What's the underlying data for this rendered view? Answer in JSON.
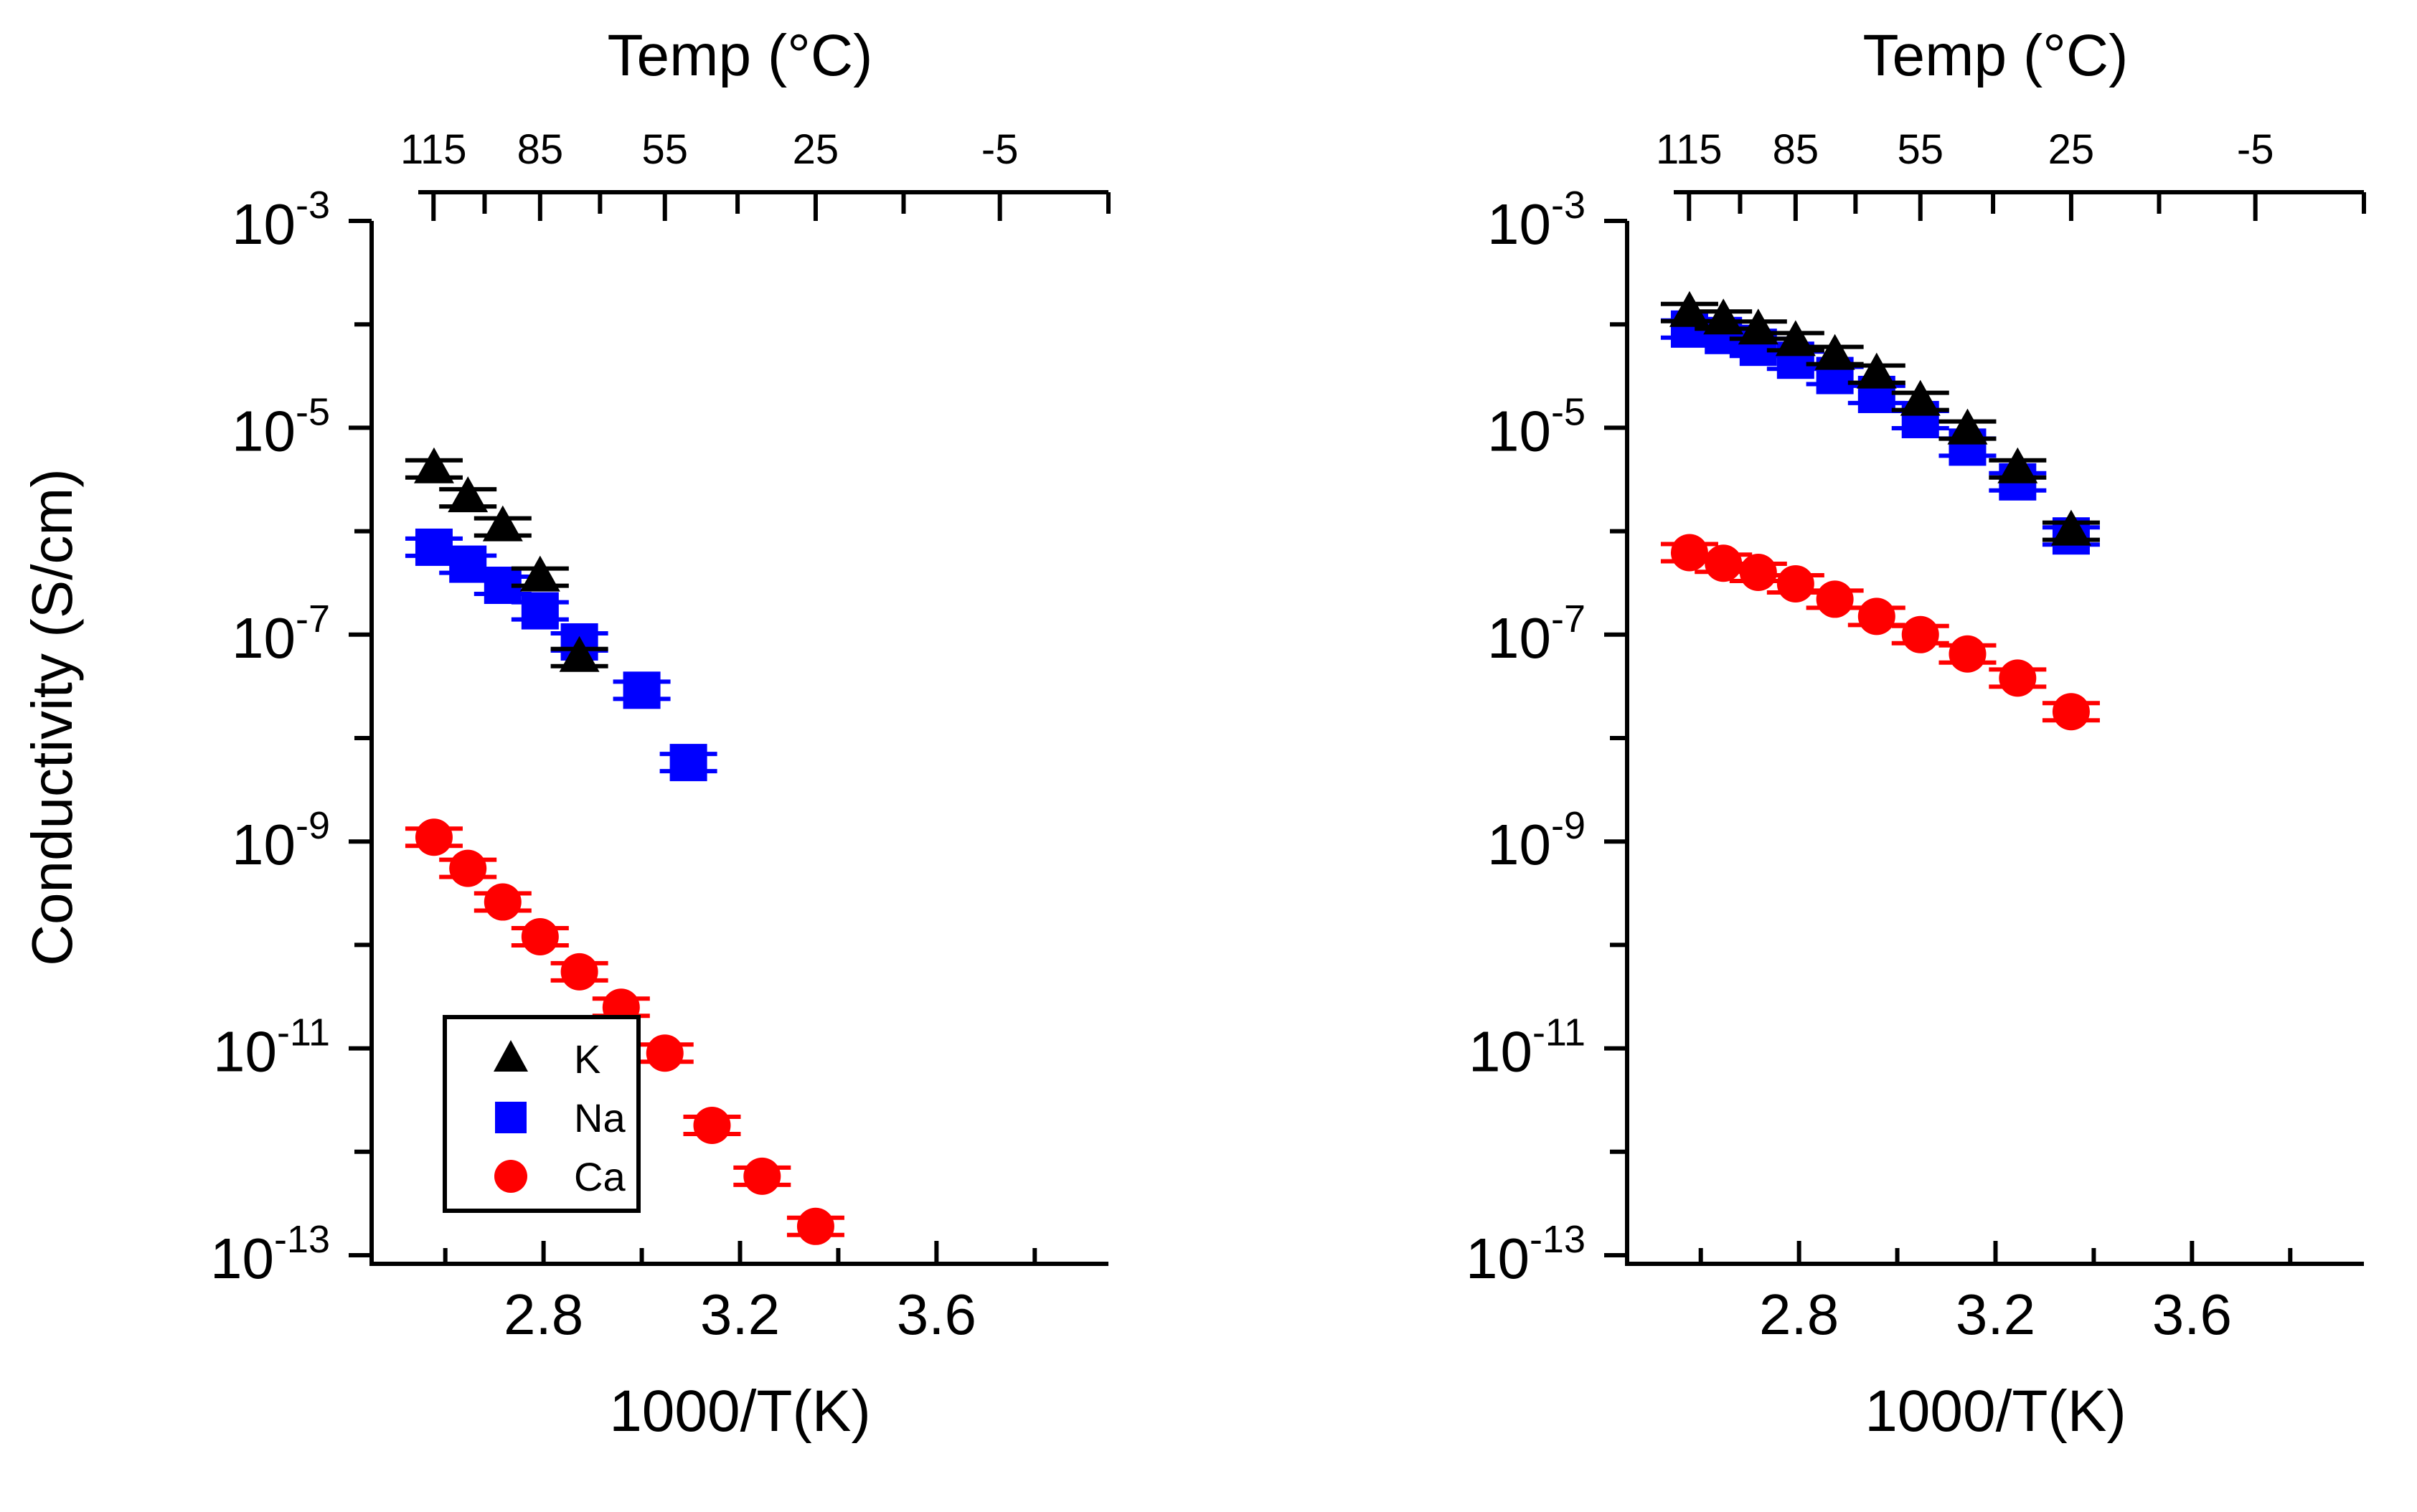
{
  "y_axis_shared_label": "Conductivity (S/cm)",
  "chart_data": [
    {
      "type": "scatter",
      "xlabel": "1000/T(K)",
      "top_axis_label": "Temp (°C)",
      "ylabel": "Conductivity (S/cm)",
      "xlim": [
        2.45,
        3.95
      ],
      "ylim_log10": [
        -13,
        -3
      ],
      "y_scale": "log",
      "x_ticks": [
        "2.8",
        "3.2",
        "3.6"
      ],
      "y_ticks": [
        {
          "base": "10",
          "exp": "-3"
        },
        {
          "base": "10",
          "exp": "-5"
        },
        {
          "base": "10",
          "exp": "-7"
        },
        {
          "base": "10",
          "exp": "-9"
        },
        {
          "base": "10",
          "exp": "-11"
        },
        {
          "base": "10",
          "exp": "-13"
        }
      ],
      "top_ticks": [
        "115",
        "85",
        "55",
        "25",
        "-5"
      ],
      "legend": {
        "position": "bottom-left",
        "entries": [
          "K",
          "Na",
          "Ca"
        ]
      },
      "series": [
        {
          "name": "K",
          "marker": "triangle",
          "color": "#000000",
          "x": [
            2.577,
            2.646,
            2.717,
            2.793,
            2.873
          ],
          "y": [
            4e-06,
            2.1e-06,
            1.1e-06,
            3.6e-07,
            6e-08
          ]
        },
        {
          "name": "Na",
          "marker": "square",
          "color": "#0000ff",
          "x": [
            2.577,
            2.646,
            2.717,
            2.793,
            2.873,
            3.0,
            3.095
          ],
          "y": [
            7e-07,
            4.8e-07,
            3e-07,
            1.7e-07,
            8.5e-08,
            2.9e-08,
            5.8e-09
          ]
        },
        {
          "name": "Ca",
          "marker": "circle",
          "color": "#ff0000",
          "x": [
            2.577,
            2.646,
            2.717,
            2.793,
            2.873,
            2.958,
            3.047,
            3.143,
            3.245,
            3.354
          ],
          "y": [
            1.1e-09,
            5.5e-10,
            2.6e-10,
            1.2e-10,
            5.5e-11,
            2.5e-11,
            9e-12,
            1.8e-12,
            5.8e-13,
            1.9e-13
          ]
        }
      ]
    },
    {
      "type": "scatter",
      "xlabel": "1000/T(K)",
      "top_axis_label": "Temp (°C)",
      "xlim": [
        2.45,
        3.95
      ],
      "ylim_log10": [
        -13,
        -3
      ],
      "y_scale": "log",
      "x_ticks": [
        "2.8",
        "3.2",
        "3.6"
      ],
      "y_ticks": [
        {
          "base": "10",
          "exp": "-3"
        },
        {
          "base": "10",
          "exp": "-5"
        },
        {
          "base": "10",
          "exp": "-7"
        },
        {
          "base": "10",
          "exp": "-9"
        },
        {
          "base": "10",
          "exp": "-11"
        },
        {
          "base": "10",
          "exp": "-13"
        }
      ],
      "top_ticks": [
        "115",
        "85",
        "55",
        "25",
        "-5"
      ],
      "series": [
        {
          "name": "K",
          "marker": "triangle",
          "color": "#000000",
          "x": [
            2.577,
            2.646,
            2.717,
            2.793,
            2.873,
            2.958,
            3.047,
            3.143,
            3.245,
            3.354
          ],
          "y": [
            0.00013,
            0.00011,
            8.8e-05,
            6.8e-05,
            5e-05,
            3.3e-05,
            1.8e-05,
            9.5e-06,
            4e-06,
            1e-06
          ]
        },
        {
          "name": "Na",
          "marker": "square",
          "color": "#0000ff",
          "x": [
            2.577,
            2.646,
            2.717,
            2.793,
            2.873,
            2.958,
            3.047,
            3.143,
            3.245,
            3.354
          ],
          "y": [
            9e-05,
            7.8e-05,
            6e-05,
            4.5e-05,
            3.2e-05,
            2.1e-05,
            1.2e-05,
            6.5e-06,
            3e-06,
            9e-07
          ]
        },
        {
          "name": "Ca",
          "marker": "circle",
          "color": "#ff0000",
          "x": [
            2.577,
            2.646,
            2.717,
            2.793,
            2.873,
            2.958,
            3.047,
            3.143,
            3.245,
            3.354
          ],
          "y": [
            6.2e-07,
            4.9e-07,
            4e-07,
            3.1e-07,
            2.2e-07,
            1.5e-07,
            1e-07,
            6.5e-08,
            3.8e-08,
            1.8e-08
          ]
        }
      ]
    }
  ]
}
